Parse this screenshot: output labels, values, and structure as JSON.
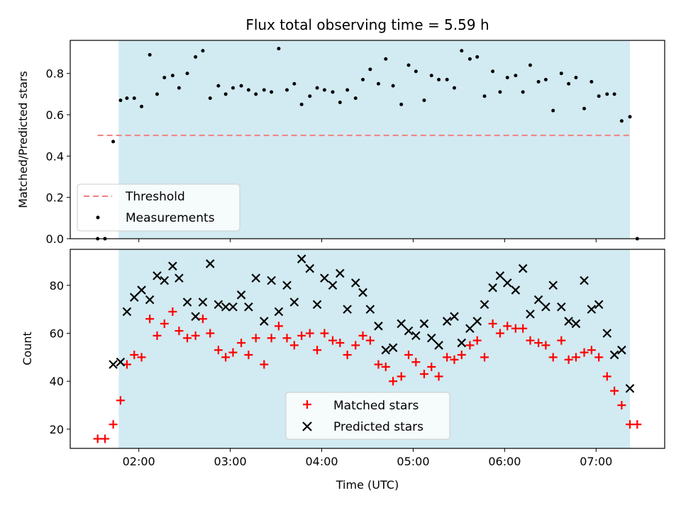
{
  "chart_data": [
    {
      "type": "scatter",
      "title": "Flux total observing time = 5.59 h",
      "xlabel": "",
      "ylabel": "Matched/Predicted stars",
      "ylim": [
        0,
        0.96
      ],
      "xlim": [
        1.25,
        7.75
      ],
      "x_unit": "hours UTC",
      "yticks": [
        0.0,
        0.2,
        0.4,
        0.6,
        0.8
      ],
      "ytick_labels": [
        "0.0",
        "0.2",
        "0.4",
        "0.6",
        "0.8"
      ],
      "shaded_region": {
        "x": [
          1.78,
          7.37
        ],
        "color": "#add8e6"
      },
      "threshold": {
        "name": "Threshold",
        "value": 0.5,
        "x": [
          1.55,
          7.37
        ],
        "color": "#f08080"
      },
      "legend": {
        "position": "lower-left",
        "entries": [
          "Threshold",
          "Measurements"
        ]
      },
      "series": [
        {
          "name": "Measurements",
          "color": "#000000",
          "x": [
            1.55,
            1.63,
            1.72,
            1.8,
            1.87,
            1.95,
            2.03,
            2.12,
            2.2,
            2.28,
            2.37,
            2.44,
            2.53,
            2.62,
            2.7,
            2.78,
            2.87,
            2.95,
            3.03,
            3.12,
            3.2,
            3.28,
            3.37,
            3.45,
            3.53,
            3.62,
            3.7,
            3.78,
            3.87,
            3.95,
            4.03,
            4.12,
            4.2,
            4.28,
            4.37,
            4.45,
            4.53,
            4.62,
            4.7,
            4.78,
            4.87,
            4.95,
            5.03,
            5.12,
            5.2,
            5.28,
            5.37,
            5.45,
            5.53,
            5.62,
            5.7,
            5.78,
            5.87,
            5.95,
            6.03,
            6.12,
            6.2,
            6.28,
            6.37,
            6.45,
            6.53,
            6.62,
            6.7,
            6.78,
            6.87,
            6.95,
            7.03,
            7.12,
            7.2,
            7.28,
            7.37,
            7.45
          ],
          "y": [
            0.0,
            0.0,
            0.47,
            0.67,
            0.68,
            0.68,
            0.64,
            0.89,
            0.7,
            0.78,
            0.79,
            0.73,
            0.8,
            0.88,
            0.91,
            0.68,
            0.74,
            0.7,
            0.73,
            0.74,
            0.72,
            0.7,
            0.72,
            0.71,
            0.92,
            0.72,
            0.75,
            0.65,
            0.69,
            0.73,
            0.72,
            0.71,
            0.66,
            0.72,
            0.68,
            0.77,
            0.82,
            0.75,
            0.87,
            0.74,
            0.65,
            0.84,
            0.81,
            0.67,
            0.79,
            0.77,
            0.77,
            0.73,
            0.91,
            0.87,
            0.88,
            0.69,
            0.81,
            0.71,
            0.78,
            0.79,
            0.71,
            0.84,
            0.76,
            0.77,
            0.62,
            0.8,
            0.75,
            0.78,
            0.63,
            0.76,
            0.69,
            0.7,
            0.7,
            0.57,
            0.59,
            0.0
          ]
        }
      ]
    },
    {
      "type": "scatter",
      "title": "",
      "xlabel": "Time (UTC)",
      "ylabel": "Count",
      "ylim": [
        12,
        95
      ],
      "xlim": [
        1.25,
        7.75
      ],
      "x_unit": "hours UTC",
      "xticks": [
        2,
        3,
        4,
        5,
        6,
        7
      ],
      "xtick_labels": [
        "02:00",
        "03:00",
        "04:00",
        "05:00",
        "06:00",
        "07:00"
      ],
      "yticks": [
        20,
        40,
        60,
        80
      ],
      "ytick_labels": [
        "20",
        "40",
        "60",
        "80"
      ],
      "shaded_region": {
        "x": [
          1.78,
          7.37
        ],
        "color": "#add8e6"
      },
      "legend": {
        "position": "lower-center",
        "entries": [
          "Matched stars",
          "Predicted stars"
        ]
      },
      "series": [
        {
          "name": "Matched stars",
          "marker": "plus",
          "color": "#ff0000",
          "x": [
            1.55,
            1.63,
            1.72,
            1.8,
            1.87,
            1.95,
            2.03,
            2.12,
            2.2,
            2.28,
            2.37,
            2.44,
            2.53,
            2.62,
            2.7,
            2.78,
            2.87,
            2.95,
            3.03,
            3.12,
            3.2,
            3.28,
            3.37,
            3.45,
            3.53,
            3.62,
            3.7,
            3.78,
            3.87,
            3.95,
            4.03,
            4.12,
            4.2,
            4.28,
            4.37,
            4.45,
            4.53,
            4.62,
            4.7,
            4.78,
            4.87,
            4.95,
            5.03,
            5.12,
            5.2,
            5.28,
            5.37,
            5.45,
            5.53,
            5.62,
            5.7,
            5.78,
            5.87,
            5.95,
            6.03,
            6.12,
            6.2,
            6.28,
            6.37,
            6.45,
            6.53,
            6.62,
            6.7,
            6.78,
            6.87,
            6.95,
            7.03,
            7.12,
            7.2,
            7.28,
            7.37,
            7.45
          ],
          "y": [
            16,
            16,
            22,
            32,
            47,
            51,
            50,
            66,
            59,
            64,
            69,
            61,
            58,
            59,
            66,
            60,
            53,
            50,
            52,
            56,
            51,
            58,
            47,
            58,
            63,
            58,
            55,
            59,
            60,
            53,
            60,
            57,
            56,
            51,
            55,
            59,
            57,
            47,
            46,
            40,
            42,
            51,
            48,
            43,
            46,
            42,
            50,
            49,
            51,
            55,
            57,
            50,
            64,
            60,
            63,
            62,
            62,
            57,
            56,
            55,
            50,
            57,
            49,
            50,
            52,
            53,
            50,
            42,
            36,
            30,
            22,
            22
          ]
        },
        {
          "name": "Predicted stars",
          "marker": "x",
          "color": "#000000",
          "x": [
            1.72,
            1.8,
            1.87,
            1.95,
            2.03,
            2.12,
            2.2,
            2.28,
            2.37,
            2.44,
            2.53,
            2.62,
            2.7,
            2.78,
            2.87,
            2.95,
            3.03,
            3.12,
            3.2,
            3.28,
            3.37,
            3.45,
            3.53,
            3.62,
            3.7,
            3.78,
            3.87,
            3.95,
            4.03,
            4.12,
            4.2,
            4.28,
            4.37,
            4.45,
            4.53,
            4.62,
            4.7,
            4.78,
            4.87,
            4.95,
            5.03,
            5.12,
            5.2,
            5.28,
            5.37,
            5.45,
            5.53,
            5.62,
            5.7,
            5.78,
            5.87,
            5.95,
            6.03,
            6.12,
            6.2,
            6.28,
            6.37,
            6.45,
            6.53,
            6.62,
            6.7,
            6.78,
            6.87,
            6.95,
            7.03,
            7.12,
            7.2,
            7.28,
            7.37
          ],
          "y": [
            47,
            48,
            69,
            75,
            78,
            74,
            84,
            82,
            88,
            83,
            73,
            67,
            73,
            89,
            72,
            71,
            71,
            76,
            71,
            83,
            65,
            82,
            69,
            80,
            73,
            91,
            87,
            72,
            83,
            80,
            85,
            70,
            81,
            77,
            70,
            63,
            53,
            54,
            64,
            61,
            59,
            64,
            58,
            55,
            65,
            67,
            56,
            62,
            65,
            72,
            79,
            84,
            81,
            78,
            87,
            68,
            74,
            71,
            80,
            71,
            65,
            64,
            82,
            70,
            72,
            60,
            51,
            53,
            37
          ]
        }
      ]
    }
  ]
}
